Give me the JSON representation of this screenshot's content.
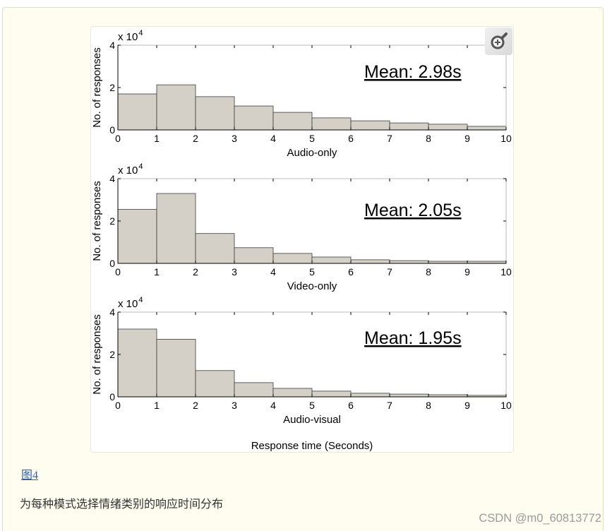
{
  "figure": {
    "shared_xlabel": "Response time (Seconds)",
    "zoom_button_icon": "zoom-in-icon"
  },
  "chart_data": [
    {
      "type": "bar",
      "xlabel": "Audio-only",
      "ylabel": "No. of responses",
      "y_multiplier": {
        "base": "x 10",
        "exponent": "4"
      },
      "bin_edges": [
        0,
        1,
        2,
        3,
        4,
        5,
        6,
        7,
        8,
        9,
        10
      ],
      "values": [
        1.7,
        2.13,
        1.57,
        1.13,
        0.83,
        0.57,
        0.43,
        0.33,
        0.27,
        0.17
      ],
      "xlim": [
        0,
        10
      ],
      "ylim": [
        0,
        4
      ],
      "xticks": [
        0,
        1,
        2,
        3,
        4,
        5,
        6,
        7,
        8,
        9,
        10
      ],
      "yticks": [
        0,
        2,
        4
      ],
      "annotation": "Mean: 2.98s",
      "grid": false,
      "box": true
    },
    {
      "type": "bar",
      "xlabel": "Video-only",
      "ylabel": "No. of responses",
      "y_multiplier": {
        "base": "x 10",
        "exponent": "4"
      },
      "bin_edges": [
        0,
        1,
        2,
        3,
        4,
        5,
        6,
        7,
        8,
        9,
        10
      ],
      "values": [
        2.55,
        3.3,
        1.41,
        0.74,
        0.47,
        0.3,
        0.17,
        0.13,
        0.1,
        0.1
      ],
      "xlim": [
        0,
        10
      ],
      "ylim": [
        0,
        4
      ],
      "xticks": [
        0,
        1,
        2,
        3,
        4,
        5,
        6,
        7,
        8,
        9,
        10
      ],
      "yticks": [
        0,
        2,
        4
      ],
      "annotation": "Mean: 2.05s",
      "grid": false,
      "box": true
    },
    {
      "type": "bar",
      "xlabel": "Audio-visual",
      "ylabel": "No. of responses",
      "y_multiplier": {
        "base": "x 10",
        "exponent": "4"
      },
      "bin_edges": [
        0,
        1,
        2,
        3,
        4,
        5,
        6,
        7,
        8,
        9,
        10
      ],
      "values": [
        3.2,
        2.72,
        1.24,
        0.67,
        0.4,
        0.27,
        0.17,
        0.13,
        0.1,
        0.07
      ],
      "xlim": [
        0,
        10
      ],
      "ylim": [
        0,
        4
      ],
      "xticks": [
        0,
        1,
        2,
        3,
        4,
        5,
        6,
        7,
        8,
        9,
        10
      ],
      "yticks": [
        0,
        2,
        4
      ],
      "annotation": "Mean: 1.95s",
      "grid": false,
      "box": true
    }
  ],
  "caption": {
    "link_label": "图4",
    "text": "为每种模式选择情绪类别的响应时间分布"
  },
  "watermark": "CSDN @m0_60813772",
  "colors": {
    "panel_bg": "#fefdf0",
    "bar_fill": "#d4d0c8",
    "bar_stroke": "#3c3c3c",
    "axis": "#000000",
    "box_line": "#a8a8a8",
    "link": "#2f5fa9",
    "zoom_icon": "#555555"
  }
}
